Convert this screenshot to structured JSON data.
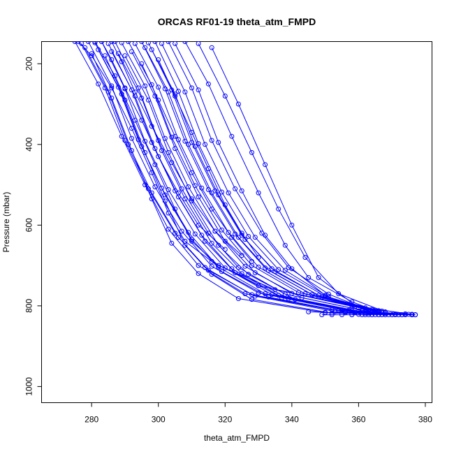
{
  "chart_data": {
    "type": "scatter",
    "title": "ORCAS RF01-19 theta_atm_FMPD",
    "xlabel": "theta_atm_FMPD",
    "ylabel": "Pressure (mbar)",
    "xlim": [
      265,
      382
    ],
    "ylim": [
      1040,
      145
    ],
    "y_inverted": true,
    "x_ticks": [
      280,
      300,
      320,
      340,
      360,
      380
    ],
    "y_ticks": [
      200,
      400,
      600,
      800,
      1000
    ],
    "x_tick_labels": [
      "280",
      "300",
      "320",
      "340",
      "360",
      "380"
    ],
    "y_tick_labels": [
      "200",
      "400",
      "600",
      "800",
      "1000"
    ],
    "grid": false,
    "legend": "none",
    "marker": "open-circle",
    "line_style": "solid",
    "color": "#0000ff",
    "series": [
      {
        "x": [
          275,
          282,
          289,
          296,
          303,
          312,
          326,
          352,
          377
        ],
        "y": [
          145,
          250,
          380,
          500,
          610,
          700,
          770,
          810,
          822
        ]
      },
      {
        "x": [
          277,
          284,
          290,
          297,
          305,
          314,
          328,
          354,
          376
        ],
        "y": [
          150,
          260,
          390,
          510,
          620,
          705,
          772,
          812,
          822
        ]
      },
      {
        "x": [
          279,
          286,
          292,
          299,
          307,
          316,
          330,
          355,
          375
        ],
        "y": [
          145,
          255,
          385,
          505,
          615,
          702,
          768,
          810,
          821
        ]
      },
      {
        "x": [
          281,
          288,
          294,
          301,
          309,
          318,
          332,
          357,
          374
        ],
        "y": [
          148,
          258,
          388,
          508,
          618,
          704,
          770,
          811,
          822
        ]
      },
      {
        "x": [
          283,
          290,
          296,
          303,
          311,
          320,
          334,
          358,
          373
        ],
        "y": [
          145,
          262,
          392,
          512,
          622,
          706,
          772,
          812,
          822
        ]
      },
      {
        "x": [
          285,
          292,
          298,
          305,
          313,
          322,
          336,
          360,
          372
        ],
        "y": [
          150,
          265,
          395,
          515,
          625,
          708,
          774,
          813,
          822
        ]
      },
      {
        "x": [
          287,
          294,
          300,
          307,
          315,
          324,
          338,
          361,
          371
        ],
        "y": [
          145,
          260,
          390,
          510,
          620,
          705,
          771,
          811,
          821
        ]
      },
      {
        "x": [
          289,
          296,
          302,
          309,
          317,
          326,
          340,
          363,
          370
        ],
        "y": [
          148,
          255,
          385,
          505,
          615,
          702,
          769,
          810,
          822
        ]
      },
      {
        "x": [
          291,
          298,
          304,
          311,
          319,
          328,
          342,
          364,
          369
        ],
        "y": [
          145,
          252,
          382,
          502,
          612,
          700,
          767,
          809,
          822
        ]
      },
      {
        "x": [
          293,
          300,
          306,
          313,
          321,
          330,
          344,
          365,
          368
        ],
        "y": [
          150,
          258,
          388,
          508,
          618,
          704,
          770,
          811,
          822
        ]
      },
      {
        "x": [
          295,
          302,
          308,
          315,
          323,
          332,
          346,
          366,
          367
        ],
        "y": [
          145,
          262,
          392,
          512,
          622,
          706,
          772,
          812,
          822
        ]
      },
      {
        "x": [
          297,
          304,
          310,
          317,
          325,
          334,
          348,
          367,
          366
        ],
        "y": [
          148,
          265,
          395,
          515,
          625,
          708,
          774,
          813,
          822
        ]
      },
      {
        "x": [
          299,
          306,
          312,
          319,
          327,
          336,
          350,
          366,
          365
        ],
        "y": [
          145,
          268,
          398,
          518,
          628,
          710,
          776,
          814,
          822
        ]
      },
      {
        "x": [
          301,
          308,
          314,
          321,
          329,
          338,
          351,
          364,
          363
        ],
        "y": [
          150,
          270,
          400,
          520,
          630,
          712,
          778,
          815,
          822
        ]
      },
      {
        "x": [
          278,
          285,
          291,
          298,
          306,
          315,
          329,
          353,
          372
        ],
        "y": [
          160,
          270,
          400,
          520,
          630,
          712,
          776,
          814,
          822
        ]
      },
      {
        "x": [
          282,
          289,
          295,
          302,
          310,
          319,
          333,
          356,
          373
        ],
        "y": [
          165,
          275,
          405,
          525,
          635,
          715,
          778,
          815,
          822
        ]
      },
      {
        "x": [
          286,
          293,
          299,
          306,
          314,
          323,
          337,
          359,
          371
        ],
        "y": [
          170,
          280,
          410,
          530,
          640,
          718,
          780,
          816,
          822
        ]
      },
      {
        "x": [
          288,
          295,
          301,
          308,
          316,
          325,
          339,
          362,
          370
        ],
        "y": [
          175,
          285,
          415,
          535,
          645,
          720,
          782,
          817,
          822
        ]
      },
      {
        "x": [
          290,
          297,
          303,
          310,
          318,
          327,
          341,
          363,
          368
        ],
        "y": [
          180,
          290,
          420,
          540,
          650,
          722,
          784,
          818,
          822
        ]
      },
      {
        "x": [
          292,
          299,
          305,
          312,
          320,
          329,
          343,
          364,
          366
        ],
        "y": [
          170,
          280,
          410,
          530,
          640,
          718,
          780,
          816,
          822
        ]
      },
      {
        "x": [
          280,
          286,
          292,
          298,
          304,
          312,
          324,
          350,
          377
        ],
        "y": [
          175,
          285,
          415,
          535,
          645,
          720,
          782,
          817,
          822
        ]
      },
      {
        "x": [
          284,
          290,
          296,
          302,
          308,
          316,
          328,
          352,
          376
        ],
        "y": [
          180,
          290,
          420,
          540,
          650,
          722,
          784,
          818,
          822
        ]
      },
      {
        "x": [
          296,
          303,
          309,
          316,
          324,
          333,
          347,
          365,
          364
        ],
        "y": [
          160,
          270,
          400,
          520,
          630,
          712,
          776,
          814,
          822
        ]
      },
      {
        "x": [
          298,
          305,
          311,
          318,
          326,
          335,
          349,
          366,
          362
        ],
        "y": [
          165,
          275,
          405,
          525,
          635,
          715,
          778,
          815,
          822
        ]
      },
      {
        "x": [
          303,
          310,
          316,
          323,
          331,
          339,
          351,
          363,
          360
        ],
        "y": [
          145,
          260,
          390,
          510,
          620,
          705,
          771,
          811,
          821
        ]
      },
      {
        "x": [
          305,
          312,
          318,
          325,
          332,
          340,
          350,
          361,
          358
        ],
        "y": [
          150,
          265,
          395,
          515,
          625,
          708,
          774,
          813,
          822
        ]
      },
      {
        "x": [
          308,
          315,
          322,
          330,
          338,
          345,
          358,
          366
        ],
        "y": [
          145,
          250,
          380,
          520,
          650,
          730,
          790,
          815
        ]
      },
      {
        "x": [
          312,
          320,
          328,
          336,
          344,
          354,
          368
        ],
        "y": [
          150,
          280,
          420,
          560,
          680,
          770,
          815
        ]
      },
      {
        "x": [
          316,
          324,
          332,
          340,
          348,
          360
        ],
        "y": [
          160,
          300,
          450,
          600,
          730,
          805
        ]
      },
      {
        "x": [
          281,
          287,
          293,
          299,
          305,
          310,
          318,
          335,
          362,
          377
        ],
        "y": [
          145,
          230,
          340,
          450,
          560,
          640,
          700,
          760,
          805,
          822
        ]
      },
      {
        "x": [
          276,
          280,
          286,
          292,
          298,
          303,
          308,
          316,
          330,
          358,
          376
        ],
        "y": [
          145,
          180,
          260,
          360,
          470,
          570,
          640,
          690,
          750,
          800,
          821
        ]
      },
      {
        "x": [
          283,
          286,
          290,
          295,
          300,
          306,
          312,
          320
        ],
        "y": [
          145,
          190,
          260,
          340,
          430,
          520,
          600,
          660
        ]
      },
      {
        "x": [
          286,
          289,
          293,
          298,
          304,
          310,
          317,
          325
        ],
        "y": [
          145,
          195,
          270,
          355,
          445,
          535,
          615,
          675
        ]
      },
      {
        "x": [
          295,
          300,
          305,
          310,
          316,
          322,
          328
        ],
        "y": [
          200,
          290,
          380,
          470,
          560,
          630,
          690
        ]
      },
      {
        "x": [
          300,
          305,
          310,
          315,
          320,
          325,
          330
        ],
        "y": [
          190,
          280,
          370,
          460,
          550,
          620,
          680
        ]
      },
      {
        "x": [
          349,
          352,
          355,
          358,
          361,
          364,
          367,
          370,
          373,
          376
        ],
        "y": [
          822,
          822,
          822,
          822,
          822,
          822,
          822,
          822,
          822,
          822
        ]
      },
      {
        "x": [
          345,
          350,
          356,
          362,
          368,
          374
        ],
        "y": [
          815,
          816,
          817,
          818,
          819,
          820
        ]
      }
    ]
  }
}
